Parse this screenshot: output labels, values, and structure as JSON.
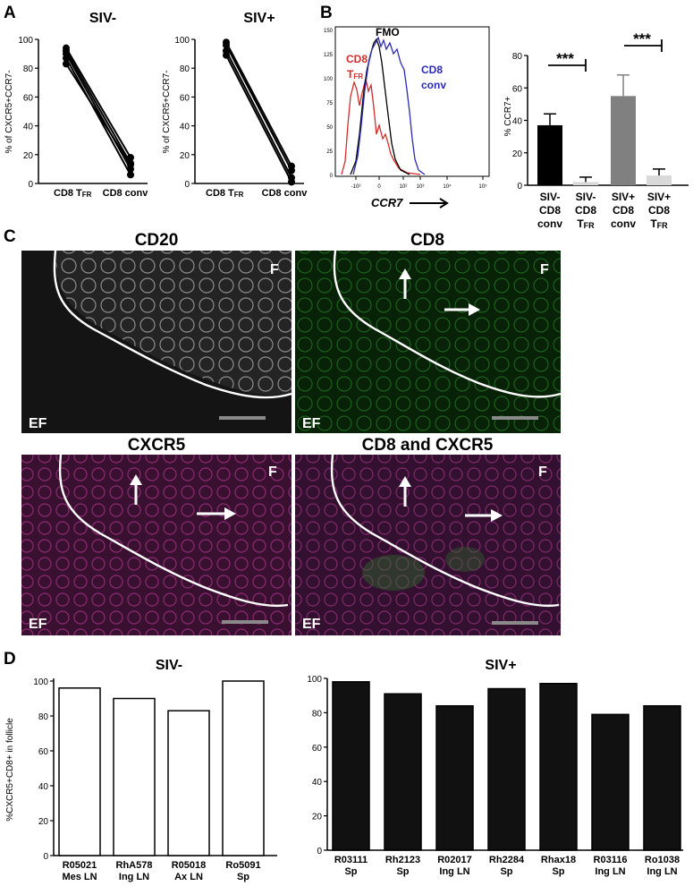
{
  "panels": {
    "A": {
      "label": "A",
      "left": {
        "title": "SIV-",
        "ylabel": "% of CXCR5+CCR7-",
        "yticks": [
          "0",
          "20",
          "40",
          "60",
          "80",
          "100"
        ],
        "xcats": [
          "CD8 T",
          "CD8 conv"
        ],
        "xcat_sub": "FR"
      },
      "right": {
        "title": "SIV+",
        "ylabel": "% of CXCR5+CCR7-",
        "yticks": [
          "0",
          "20",
          "40",
          "60",
          "80",
          "100"
        ],
        "xcats": [
          "CD8 T",
          "CD8 conv"
        ],
        "xcat_sub": "FR"
      }
    },
    "B": {
      "label": "B",
      "hist": {
        "fmo": "FMO",
        "cd8tfr_1": "CD8",
        "cd8tfr_2": "T",
        "cd8tfr_sub": "FR",
        "cd8conv_1": "CD8",
        "cd8conv_2": "conv",
        "xlabel": "CCR7",
        "arrow": "⟶",
        "yticks": [
          "0",
          "25",
          "50",
          "75",
          "100",
          "125",
          "150"
        ],
        "xticks": [
          "-10²",
          "0",
          "10²",
          "10³",
          "10⁴",
          "10⁵"
        ]
      },
      "bars": {
        "ylabel": "% CCR7+",
        "yticks": [
          "0",
          "20",
          "40",
          "60",
          "80"
        ],
        "sig1": "***",
        "sig2": "***",
        "cats": [
          [
            "SIV-",
            "CD8",
            "conv"
          ],
          [
            "SIV-",
            "CD8",
            "T"
          ],
          [
            "SIV+",
            "CD8",
            "conv"
          ],
          [
            "SIV+",
            "CD8",
            "T"
          ]
        ],
        "sub": "FR"
      }
    },
    "C": {
      "label": "C",
      "images": [
        {
          "title": "CD20",
          "f": "F",
          "ef": "EF"
        },
        {
          "title": "CD8",
          "f": "F",
          "ef": "EF"
        },
        {
          "title": "CXCR5",
          "f": "F",
          "ef": "EF"
        },
        {
          "title": "CD8 and CXCR5",
          "f": "F",
          "ef": "EF"
        }
      ]
    },
    "D": {
      "label": "D",
      "left": {
        "title": "SIV-",
        "ylabel": "%CXCR5+CD8+ in follicle",
        "yticks": [
          "0",
          "20",
          "40",
          "60",
          "80",
          "100"
        ]
      },
      "right": {
        "title": "SIV+",
        "yticks": [
          "0",
          "20",
          "40",
          "60",
          "80",
          "100"
        ]
      }
    }
  },
  "colors": {
    "siv_neg_bar": "#000000",
    "tfr_bar": "#d9d9d9",
    "siv_pos_bar": "#808080",
    "hist_fmo": "#000000",
    "hist_tfr": "#d42b2b",
    "hist_conv": "#2b2bb8"
  },
  "chart_data": [
    {
      "type": "line",
      "panel": "A-SIV-",
      "title": "SIV-",
      "ylabel": "% of CXCR5+CCR7-",
      "categories": [
        "CD8 TFR",
        "CD8 conv"
      ],
      "ylim": [
        0,
        100
      ],
      "series": [
        {
          "values": [
            94,
            18
          ]
        },
        {
          "values": [
            92,
            14
          ]
        },
        {
          "values": [
            90,
            10
          ]
        },
        {
          "values": [
            87,
            6
          ]
        },
        {
          "values": [
            83,
            13
          ]
        }
      ]
    },
    {
      "type": "line",
      "panel": "A-SIV+",
      "title": "SIV+",
      "ylabel": "% of CXCR5+CCR7-",
      "categories": [
        "CD8 TFR",
        "CD8 conv"
      ],
      "ylim": [
        0,
        100
      ],
      "series": [
        {
          "values": [
            98,
            12
          ]
        },
        {
          "values": [
            96,
            9
          ]
        },
        {
          "values": [
            92,
            4
          ]
        },
        {
          "values": [
            89,
            1
          ]
        }
      ]
    },
    {
      "type": "bar",
      "panel": "B-bars",
      "ylabel": "% CCR7+",
      "categories": [
        "SIV- CD8 conv",
        "SIV- CD8 TFR",
        "SIV+ CD8 conv",
        "SIV+ CD8 TFR"
      ],
      "values": [
        37,
        2,
        55,
        6
      ],
      "errors": [
        7,
        3,
        13,
        4
      ],
      "ylim": [
        0,
        80
      ]
    },
    {
      "type": "bar",
      "panel": "D-SIV-",
      "title": "SIV-",
      "ylabel": "%CXCR5+CD8+ in follicle",
      "categories": [
        "R05021 Mes LN",
        "RhA578 Ing LN",
        "R05018 Ax LN",
        "Ro5091 Sp"
      ],
      "values": [
        96,
        90,
        83,
        100
      ],
      "ylim": [
        0,
        100
      ]
    },
    {
      "type": "bar",
      "panel": "D-SIV+",
      "title": "SIV+",
      "categories": [
        "R03111 Sp",
        "Rh2123 Sp",
        "R02017 Ing LN",
        "Rh2284 Sp",
        "Rhax18 Sp",
        "R03116 Ing LN",
        "Ro1038 Ing LN"
      ],
      "values": [
        98,
        91,
        84,
        94,
        97,
        79,
        84
      ],
      "ylim": [
        0,
        100
      ]
    }
  ]
}
